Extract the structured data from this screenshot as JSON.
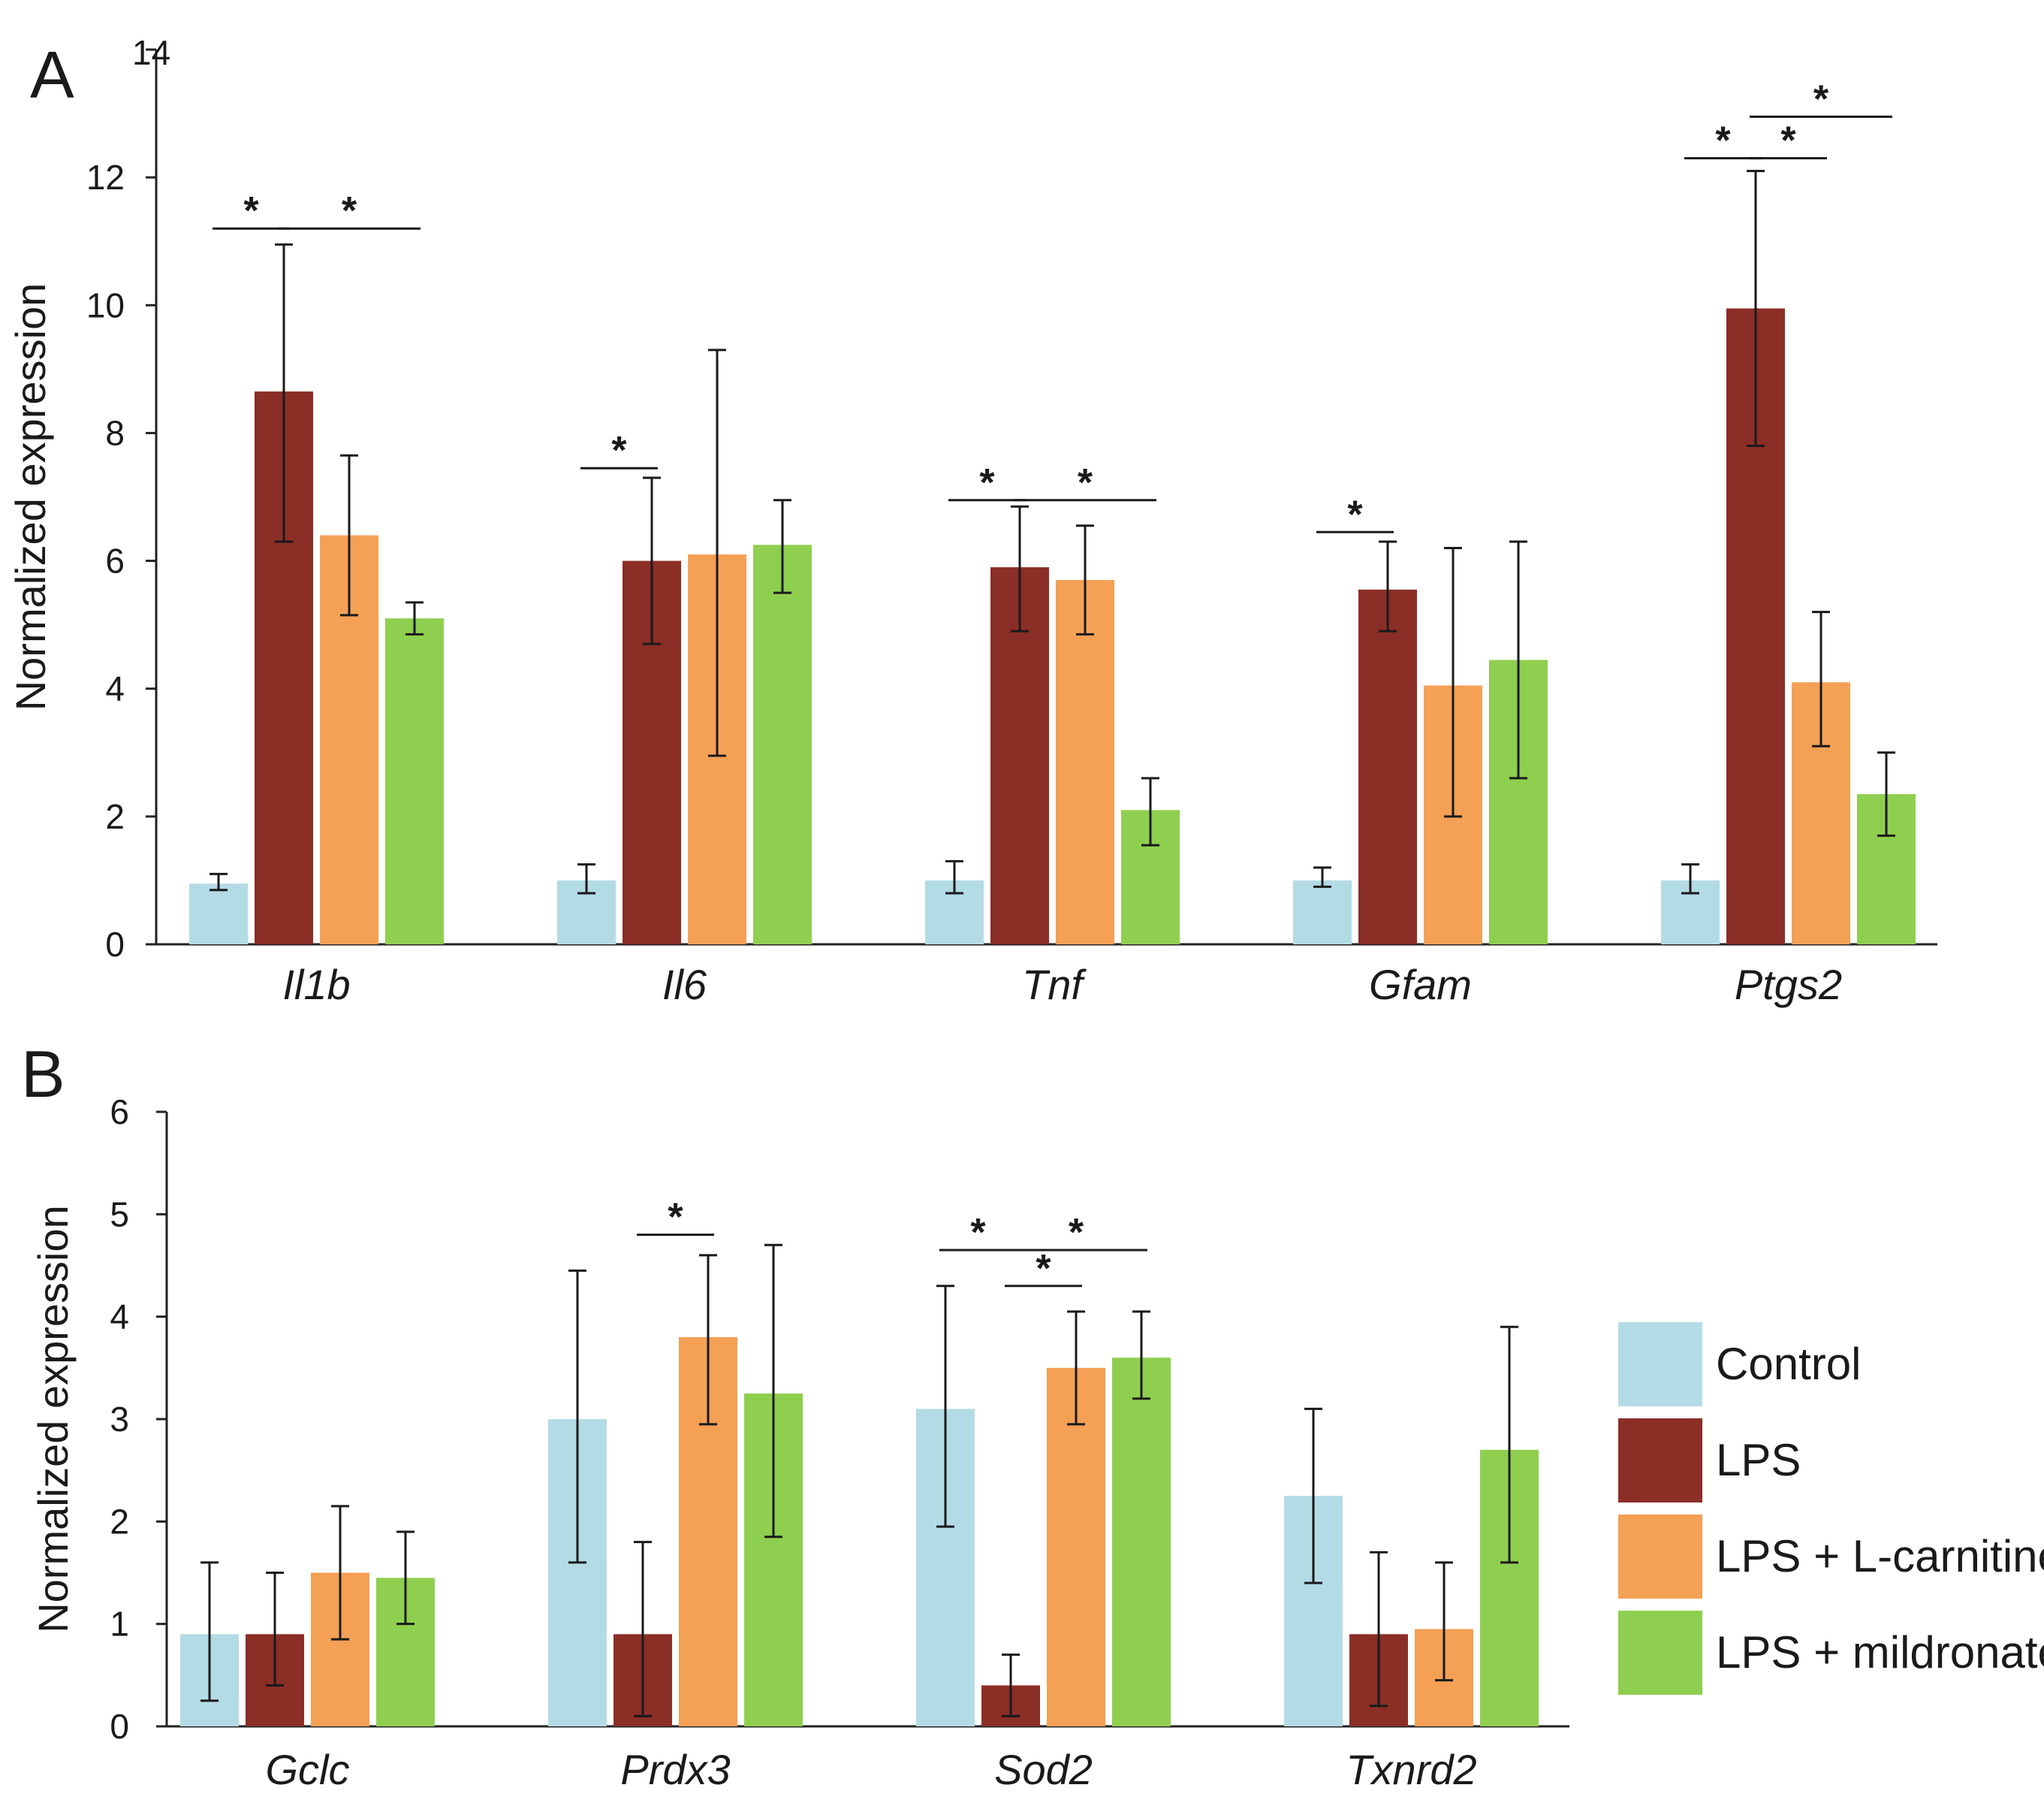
{
  "chart_data": [
    {
      "type": "bar",
      "panel_label": "A",
      "ylabel": "Normalized expression",
      "ylim": [
        0,
        14
      ],
      "yticks": [
        "0",
        "2",
        "4",
        "6",
        "8",
        "10",
        "12",
        "14"
      ],
      "categories": [
        "Il1b",
        "Il6",
        "Tnf",
        "Gfam",
        "Ptgs2"
      ],
      "series": [
        {
          "name": "Control",
          "values": [
            0.95,
            1.0,
            1.0,
            1.0,
            1.0
          ],
          "err_low": [
            0.85,
            0.8,
            0.8,
            0.9,
            0.8
          ],
          "err_high": [
            1.1,
            1.25,
            1.3,
            1.2,
            1.25
          ]
        },
        {
          "name": "LPS",
          "values": [
            8.65,
            6.0,
            5.9,
            5.55,
            9.95
          ],
          "err_low": [
            6.3,
            4.7,
            4.9,
            4.9,
            7.8
          ],
          "err_high": [
            10.95,
            7.3,
            6.85,
            6.3,
            12.1
          ]
        },
        {
          "name": "LPS + L-carnitine",
          "values": [
            6.4,
            6.1,
            5.7,
            4.05,
            4.1
          ],
          "err_low": [
            5.15,
            2.95,
            4.85,
            2.0,
            3.1
          ],
          "err_high": [
            7.65,
            9.3,
            6.55,
            6.2,
            5.2
          ]
        },
        {
          "name": "LPS + mildronate",
          "values": [
            5.1,
            6.25,
            2.1,
            4.45,
            2.35
          ],
          "err_low": [
            4.85,
            5.5,
            1.55,
            2.6,
            1.7
          ],
          "err_high": [
            5.35,
            6.95,
            2.6,
            6.3,
            3.0
          ]
        }
      ],
      "significance": [
        {
          "label": "*",
          "cat": 0,
          "from": 0,
          "to": 1,
          "y": 11.2
        },
        {
          "label": "*",
          "cat": 0,
          "from": 1,
          "to": 3,
          "y": 11.2
        },
        {
          "label": "*",
          "cat": 1,
          "from": 0,
          "to": 1,
          "y": 7.45
        },
        {
          "label": "*",
          "cat": 2,
          "from": 0,
          "to": 1,
          "y": 6.95
        },
        {
          "label": "*",
          "cat": 2,
          "from": 1,
          "to": 3,
          "y": 6.95
        },
        {
          "label": "*",
          "cat": 3,
          "from": 0,
          "to": 1,
          "y": 6.45
        },
        {
          "label": "*",
          "cat": 4,
          "from": 0,
          "to": 1,
          "y": 12.3
        },
        {
          "label": "*",
          "cat": 4,
          "from": 1,
          "to": 2,
          "y": 12.3
        },
        {
          "label": "*",
          "cat": 4,
          "from": 1,
          "to": 3,
          "y": 12.95
        }
      ]
    },
    {
      "type": "bar",
      "panel_label": "B",
      "ylabel": "Normalized expression",
      "ylim": [
        0,
        6
      ],
      "yticks": [
        "0",
        "1",
        "2",
        "3",
        "4",
        "5",
        "6"
      ],
      "categories": [
        "Gclc",
        "Prdx3",
        "Sod2",
        "Txnrd2"
      ],
      "series": [
        {
          "name": "Control",
          "values": [
            0.9,
            3.0,
            3.1,
            2.25
          ],
          "err_low": [
            0.25,
            1.6,
            1.95,
            1.4
          ],
          "err_high": [
            1.6,
            4.45,
            4.3,
            3.1
          ]
        },
        {
          "name": "LPS",
          "values": [
            0.9,
            0.9,
            0.4,
            0.9
          ],
          "err_low": [
            0.4,
            0.1,
            0.1,
            0.2
          ],
          "err_high": [
            1.5,
            1.8,
            0.7,
            1.7
          ]
        },
        {
          "name": "LPS + L-carnitine",
          "values": [
            1.5,
            3.8,
            3.5,
            0.95
          ],
          "err_low": [
            0.85,
            2.95,
            2.95,
            0.45
          ],
          "err_high": [
            2.15,
            4.6,
            4.05,
            1.6
          ]
        },
        {
          "name": "LPS + mildronate",
          "values": [
            1.45,
            3.25,
            3.6,
            2.7
          ],
          "err_low": [
            1.0,
            1.85,
            3.2,
            1.6
          ],
          "err_high": [
            1.9,
            4.7,
            4.05,
            3.9
          ]
        }
      ],
      "significance": [
        {
          "label": "*",
          "cat": 1,
          "from": 1,
          "to": 2,
          "y": 4.8
        },
        {
          "label": "*",
          "cat": 2,
          "from": 0,
          "to": 1,
          "y": 4.65
        },
        {
          "label": "*",
          "cat": 2,
          "from": 1,
          "to": 3,
          "y": 4.65
        },
        {
          "label": "*",
          "cat": 2,
          "from": 1,
          "to": 2,
          "y": 4.3
        }
      ]
    }
  ],
  "legend": {
    "position": "bottom-right",
    "items": [
      {
        "label": "Control",
        "color": "#b3dbe6"
      },
      {
        "label": "LPS",
        "color": "#8b2e26"
      },
      {
        "label": "LPS + L-carnitine",
        "color": "#f4a055"
      },
      {
        "label": "LPS + mildronate",
        "color": "#8fcf4f"
      }
    ]
  }
}
